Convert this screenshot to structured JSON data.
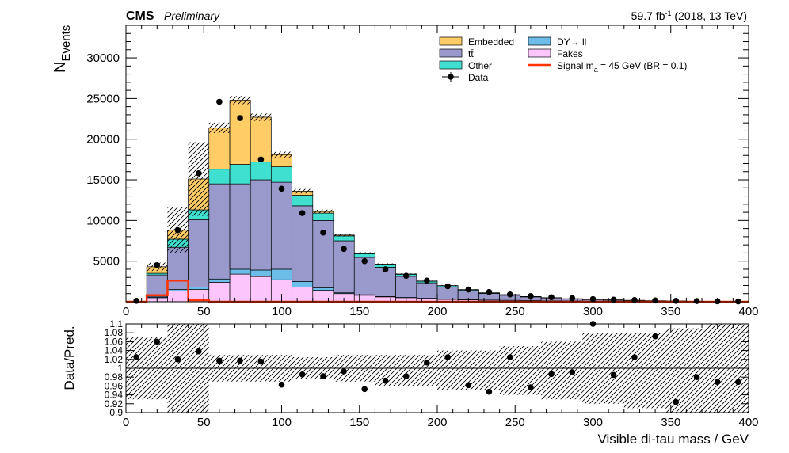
{
  "header": {
    "experiment": "CMS",
    "status": "Preliminary",
    "lumi_prefix": "59.7 fb",
    "lumi_exp": "-1",
    "lumi_suffix": " (2018, 13 TeV)"
  },
  "chart_data": [
    {
      "type": "bar",
      "stacked": true,
      "ylabel_main": "N",
      "ylabel_sub": "Events",
      "xlim": [
        0,
        400
      ],
      "ylim": [
        0,
        34000
      ],
      "x_ticks": [
        0,
        50,
        100,
        150,
        200,
        250,
        300,
        350,
        400
      ],
      "y_ticks": [
        5000,
        10000,
        15000,
        20000,
        25000,
        30000
      ],
      "bin_edges": [
        0,
        13.3,
        26.7,
        40,
        53.3,
        66.7,
        80,
        93.3,
        106.7,
        120,
        133.3,
        146.7,
        160,
        173.3,
        186.7,
        200,
        213.3,
        226.7,
        240,
        253.3,
        266.7,
        280,
        293.3,
        306.7,
        320,
        333.3,
        346.7,
        360,
        373.3,
        386.7,
        400
      ],
      "series": [
        {
          "name": "Fakes",
          "color": "#fcc6fc",
          "values": [
            0,
            500,
            1300,
            1500,
            2400,
            3400,
            3100,
            2700,
            1800,
            1400,
            1000,
            800,
            600,
            500,
            400,
            300,
            250,
            200,
            170,
            140,
            110,
            90,
            70,
            60,
            50,
            40,
            30,
            20,
            15,
            10
          ]
        },
        {
          "name": "DY→ ll",
          "color": "#6dbde9",
          "values": [
            0,
            100,
            200,
            300,
            400,
            600,
            800,
            1300,
            700,
            300,
            100,
            60,
            40,
            30,
            30,
            20,
            20,
            10,
            10,
            10,
            10,
            10,
            10,
            10,
            10,
            5,
            5,
            5,
            5,
            5
          ]
        },
        {
          "name": "tt̄",
          "color": "#9999cc",
          "values": [
            0,
            2700,
            5200,
            8300,
            11700,
            10500,
            11100,
            10700,
            9300,
            8300,
            6400,
            4600,
            3600,
            2600,
            1900,
            1500,
            1100,
            800,
            620,
            450,
            350,
            240,
            190,
            140,
            100,
            70,
            55,
            35,
            25,
            15
          ]
        },
        {
          "name": "Other",
          "color": "#40e0d0",
          "values": [
            0,
            200,
            1000,
            1200,
            1800,
            2400,
            2200,
            1900,
            1300,
            900,
            600,
            450,
            350,
            250,
            200,
            150,
            110,
            80,
            60,
            40,
            30,
            25,
            20,
            15,
            10,
            8,
            5,
            4,
            3,
            2
          ]
        },
        {
          "name": "Embedded",
          "color": "#ffcc66",
          "values": [
            0,
            800,
            1100,
            3800,
            5100,
            7900,
            5500,
            1500,
            500,
            200,
            100,
            60,
            40,
            30,
            20,
            10,
            10,
            10,
            10,
            5,
            5,
            5,
            5,
            5,
            5,
            2,
            2,
            1,
            1,
            1
          ]
        }
      ],
      "data": {
        "name": "Data",
        "x": [
          6.7,
          20,
          33.3,
          46.7,
          60,
          73.3,
          86.7,
          100,
          113.3,
          126.7,
          140,
          153.3,
          166.7,
          180,
          193.3,
          206.7,
          220,
          233.3,
          246.7,
          260,
          273.3,
          286.7,
          300,
          313.3,
          326.7,
          340,
          353.3,
          366.7,
          380,
          393.3
        ],
        "y": [
          120,
          4500,
          8800,
          15800,
          24600,
          22600,
          17500,
          13900,
          10900,
          8500,
          6500,
          5000,
          4000,
          3200,
          2600,
          1900,
          1500,
          1200,
          900,
          700,
          550,
          430,
          330,
          260,
          210,
          160,
          120,
          90,
          60,
          40
        ]
      },
      "signal": {
        "name": "Signal m",
        "sub": "a",
        "suffix": " = 45 GeV (BR = 0.1)",
        "color": "#ff3300",
        "values": [
          0,
          800,
          2600,
          200,
          0,
          0,
          0,
          0,
          0,
          0,
          0,
          0,
          0,
          0,
          0,
          0,
          0,
          0,
          0,
          0,
          0,
          0,
          0,
          0,
          0,
          0,
          0,
          0,
          0,
          0
        ]
      },
      "unc_frac": [
        0.2,
        0.12,
        0.32,
        0.3,
        0.03,
        0.02,
        0.02,
        0.02,
        0.02,
        0.02,
        0.02,
        0.02,
        0.02,
        0.02,
        0.02,
        0.03,
        0.03,
        0.03,
        0.04,
        0.04,
        0.05,
        0.05,
        0.05,
        0.05,
        0.05,
        0.05,
        0.05,
        0.05,
        0.05,
        0.05
      ]
    },
    {
      "type": "scatter",
      "ylabel": "Data/Pred.",
      "xlabel": "Visible di-tau mass / GeV",
      "xlim": [
        0,
        400
      ],
      "ylim": [
        0.9,
        1.1
      ],
      "reference_line": 1.0,
      "x_ticks": [
        0,
        50,
        100,
        150,
        200,
        250,
        300,
        350,
        400
      ],
      "y_ticks": [
        "0.9",
        "0.92",
        "0.94",
        "0.96",
        "0.98",
        "1",
        "1.02",
        "1.04",
        "1.06",
        "1.08",
        "1.1"
      ],
      "band": [
        [
          0.93,
          1.07
        ],
        [
          0.93,
          1.07
        ],
        [
          0.9,
          1.1
        ],
        [
          0.9,
          1.1
        ],
        [
          0.97,
          1.03
        ],
        [
          0.97,
          1.03
        ],
        [
          0.97,
          1.03
        ],
        [
          0.97,
          1.03
        ],
        [
          0.975,
          1.025
        ],
        [
          0.975,
          1.025
        ],
        [
          0.97,
          1.03
        ],
        [
          0.97,
          1.03
        ],
        [
          0.96,
          1.03
        ],
        [
          0.96,
          1.03
        ],
        [
          0.96,
          1.03
        ],
        [
          0.95,
          1.04
        ],
        [
          0.95,
          1.04
        ],
        [
          0.95,
          1.04
        ],
        [
          0.94,
          1.05
        ],
        [
          0.94,
          1.05
        ],
        [
          0.93,
          1.06
        ],
        [
          0.93,
          1.06
        ],
        [
          0.92,
          1.08
        ],
        [
          0.92,
          1.08
        ],
        [
          0.91,
          1.08
        ],
        [
          0.91,
          1.08
        ],
        [
          0.9,
          1.09
        ],
        [
          0.9,
          1.09
        ],
        [
          0.9,
          1.1
        ],
        [
          0.9,
          1.1
        ]
      ],
      "ratio": {
        "x": [
          6.7,
          20,
          33.3,
          46.7,
          60,
          73.3,
          86.7,
          100,
          113.3,
          126.7,
          140,
          153.3,
          166.7,
          180,
          193.3,
          206.7,
          220,
          233.3,
          246.7,
          260,
          273.3,
          286.7,
          300,
          313.3,
          326.7,
          340,
          353.3,
          366.7,
          380,
          393.3
        ],
        "y": [
          1.025,
          1.06,
          1.02,
          1.038,
          1.017,
          1.017,
          1.015,
          0.963,
          0.986,
          0.982,
          0.993,
          0.953,
          0.972,
          0.982,
          1.013,
          1.025,
          0.962,
          0.947,
          1.025,
          0.957,
          0.987,
          0.991,
          1.1,
          0.985,
          1.025,
          1.072,
          0.924,
          0.98,
          0.969,
          0.969
        ]
      }
    }
  ]
}
